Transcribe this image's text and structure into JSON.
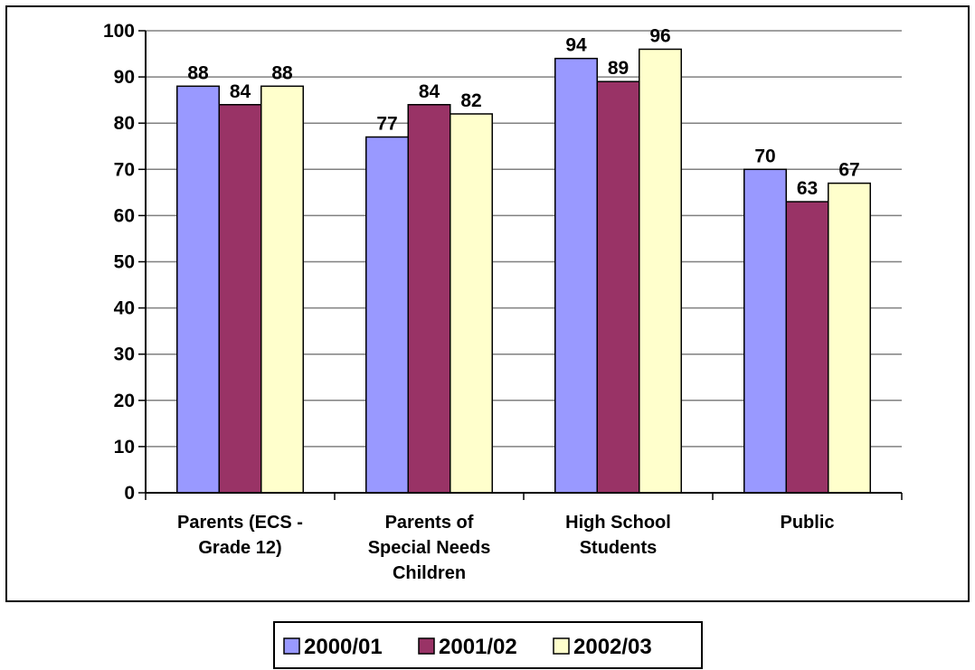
{
  "chart_data": {
    "type": "bar",
    "categories": [
      [
        "Parents (ECS -",
        "Grade 12)"
      ],
      [
        "Parents of",
        "Special Needs",
        "Children"
      ],
      [
        "High School",
        "Students"
      ],
      [
        "Public"
      ]
    ],
    "series": [
      {
        "name": "2000/01",
        "values": [
          88,
          77,
          94,
          70
        ],
        "color": "#9999ff"
      },
      {
        "name": "2001/02",
        "values": [
          84,
          84,
          89,
          63
        ],
        "color": "#993366"
      },
      {
        "name": "2002/03",
        "values": [
          88,
          82,
          96,
          67
        ],
        "color": "#ffffcc"
      }
    ],
    "ylim": [
      0,
      100
    ],
    "yticks": [
      0,
      10,
      20,
      30,
      40,
      50,
      60,
      70,
      80,
      90,
      100
    ],
    "grid": true,
    "legend_position": "bottom"
  }
}
